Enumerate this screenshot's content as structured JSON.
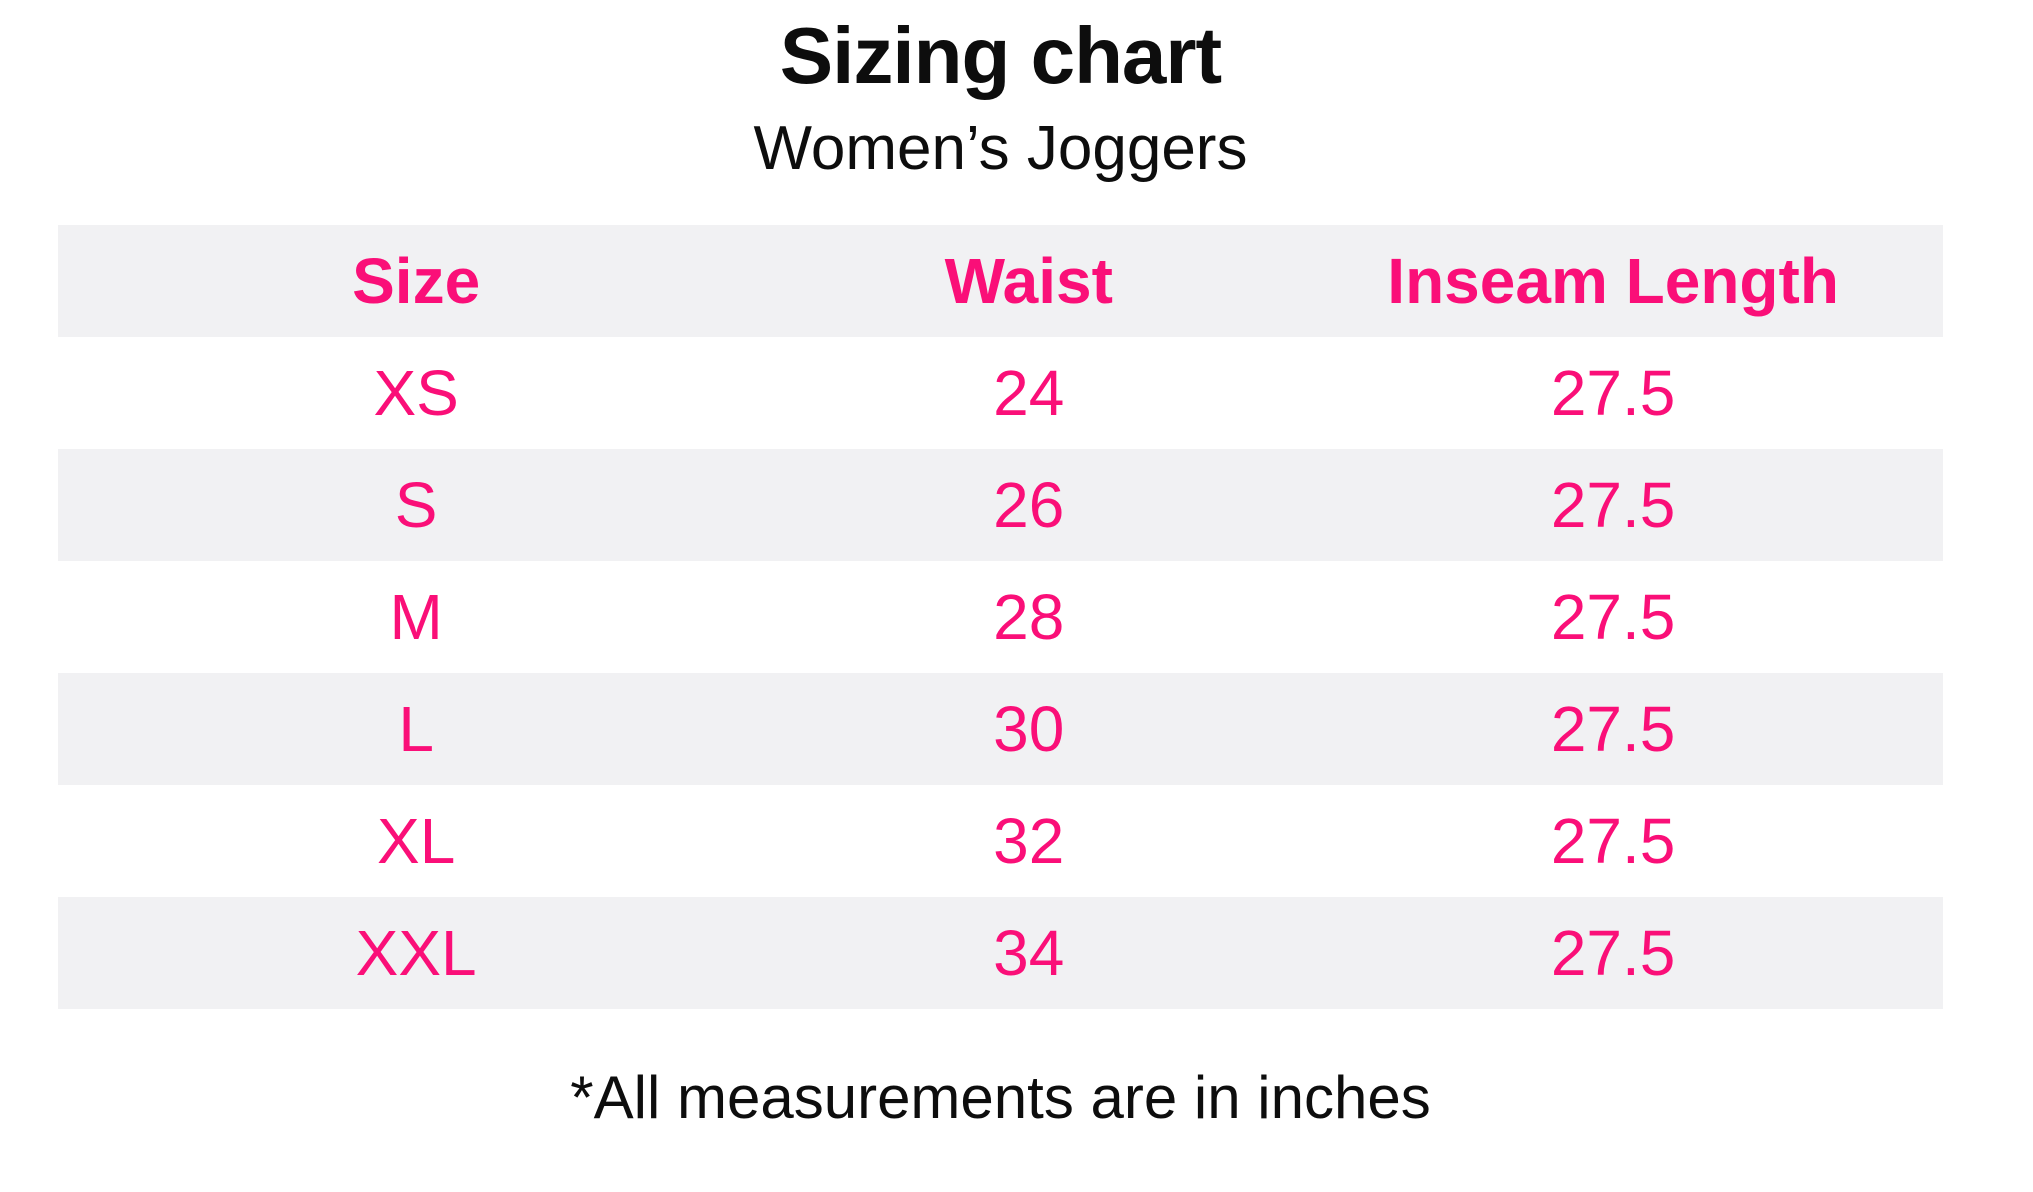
{
  "page": {
    "title": "Sizing chart",
    "subtitle": "Women’s Joggers",
    "footnote": "*All measurements are in inches"
  },
  "colors": {
    "accent_pink": "#FA0F78",
    "row_stripe_gray": "#F1F1F3",
    "text_black": "#0D0D0D",
    "background": "#FFFFFF"
  },
  "table": {
    "headers": [
      "Size",
      "Waist",
      "Inseam Length"
    ],
    "rows": [
      {
        "size": "XS",
        "waist": "24",
        "inseam": "27.5"
      },
      {
        "size": "S",
        "waist": "26",
        "inseam": "27.5"
      },
      {
        "size": "M",
        "waist": "28",
        "inseam": "27.5"
      },
      {
        "size": "L",
        "waist": "30",
        "inseam": "27.5"
      },
      {
        "size": "XL",
        "waist": "32",
        "inseam": "27.5"
      },
      {
        "size": "XXL",
        "waist": "34",
        "inseam": "27.5"
      }
    ]
  },
  "chart_data": {
    "type": "table",
    "title": "Sizing chart",
    "subtitle": "Women’s Joggers",
    "columns": [
      "Size",
      "Waist",
      "Inseam Length"
    ],
    "rows": [
      [
        "XS",
        24,
        27.5
      ],
      [
        "S",
        26,
        27.5
      ],
      [
        "M",
        28,
        27.5
      ],
      [
        "L",
        30,
        27.5
      ],
      [
        "XL",
        32,
        27.5
      ],
      [
        "XXL",
        34,
        27.5
      ]
    ],
    "footnote": "*All measurements are in inches",
    "layout_hints": {
      "header_style": "bold pink on light gray",
      "row_striping": "header gray, then alternating white/gray",
      "alignment": "all columns centered"
    }
  }
}
